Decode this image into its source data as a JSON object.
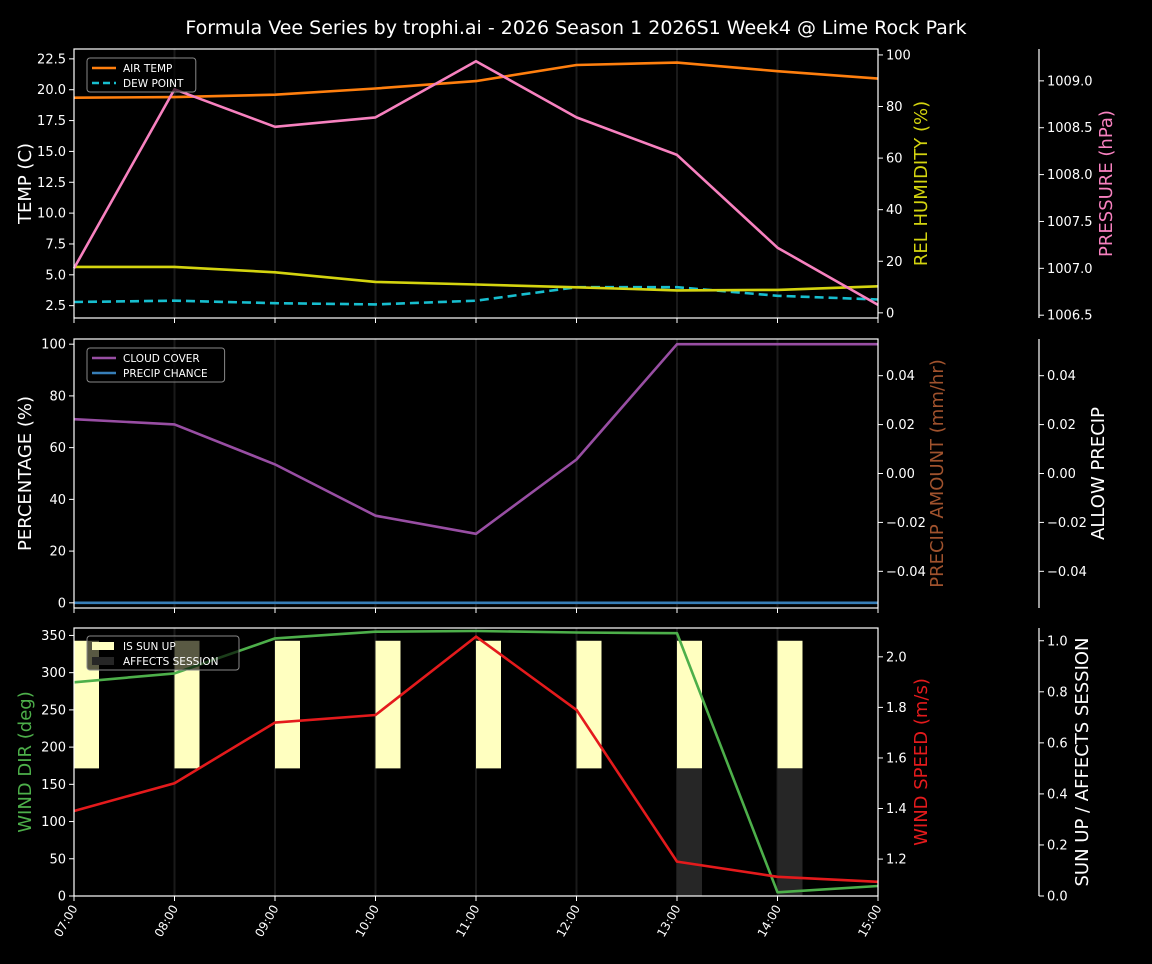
{
  "title": "Formula Vee Series by trophi.ai - 2026 Season 1 2026S1 Week4 @ Lime Rock Park",
  "colors": {
    "background": "#000000",
    "axis": "#ffffff",
    "grid": "#1a1a1a",
    "air_temp": "#ff7f0e",
    "dew_point": "#17becf",
    "humidity": "#d4d40f",
    "pressure": "#f781bf",
    "cloud_cover": "#984ea3",
    "precip_chance": "#377eb8",
    "precip_amount_label": "#a0522d",
    "wind_dir": "#4daf4a",
    "wind_speed": "#e41a1c",
    "sun_up": "#ffffc0",
    "affects_session": "#262626"
  },
  "chart_data": [
    {
      "type": "line",
      "panel": "temperature",
      "x": [
        "07:00",
        "08:00",
        "09:00",
        "10:00",
        "11:00",
        "12:00",
        "13:00",
        "14:00",
        "15:00"
      ],
      "series": [
        {
          "name": "AIR TEMP",
          "axis": "TEMP (C)",
          "style": "solid",
          "values": [
            19.35,
            19.4,
            19.6,
            20.1,
            20.7,
            22.0,
            22.2,
            21.5,
            20.9
          ]
        },
        {
          "name": "DEW POINT",
          "axis": "TEMP (C)",
          "style": "dashed",
          "values": [
            2.8,
            2.9,
            2.7,
            2.6,
            2.9,
            4.0,
            4.0,
            3.3,
            3.0
          ]
        },
        {
          "name": "REL HUMIDITY",
          "axis": "REL HUMIDITY (%)",
          "style": "solid",
          "values": [
            17.8,
            17.8,
            15.7,
            12.0,
            11.0,
            9.9,
            8.7,
            8.9,
            10.3
          ]
        },
        {
          "name": "PRESSURE",
          "axis": "PRESSURE (hPa)",
          "style": "solid",
          "values": [
            1007.0,
            1008.91,
            1008.51,
            1008.61,
            1009.21,
            1008.61,
            1008.21,
            1007.22,
            1006.61
          ]
        }
      ],
      "axes": [
        {
          "label": "TEMP (C)",
          "side": "left",
          "ylim": [
            1.5,
            23.3
          ],
          "ticks": [
            "2.5",
            "5.0",
            "7.5",
            "10.0",
            "12.5",
            "15.0",
            "17.5",
            "20.0",
            "22.5"
          ]
        },
        {
          "label": "REL HUMIDITY (%)",
          "side": "right",
          "ylim": [
            -2.0,
            102.3
          ],
          "ticks": [
            "0",
            "20",
            "40",
            "60",
            "80",
            "100"
          ]
        },
        {
          "label": "PRESSURE (hPa)",
          "side": "right-outer",
          "ylim": [
            1006.47,
            1009.34
          ],
          "ticks": [
            "1006.5",
            "1007.0",
            "1007.5",
            "1008.0",
            "1008.5",
            "1009.0"
          ]
        }
      ],
      "legend": [
        "AIR TEMP",
        "DEW POINT"
      ],
      "legend_position": "upper left"
    },
    {
      "type": "line",
      "panel": "percentage",
      "x": [
        "07:00",
        "08:00",
        "09:00",
        "10:00",
        "11:00",
        "12:00",
        "13:00",
        "14:00",
        "15:00"
      ],
      "series": [
        {
          "name": "CLOUD COVER",
          "axis": "PERCENTAGE (%)",
          "values": [
            71,
            69,
            53.5,
            33.7,
            26.7,
            55.4,
            100,
            100,
            100
          ]
        },
        {
          "name": "PRECIP CHANCE",
          "axis": "PERCENTAGE (%)",
          "values": [
            0,
            0,
            0,
            0,
            0,
            0,
            0,
            0,
            0
          ]
        }
      ],
      "axes": [
        {
          "label": "PERCENTAGE (%)",
          "side": "left",
          "ylim": [
            -2,
            102
          ],
          "ticks": [
            "0",
            "20",
            "40",
            "60",
            "80",
            "100"
          ]
        },
        {
          "label": "PRECIP AMOUNT (mm/hr)",
          "side": "right",
          "ylim": [
            -0.055,
            0.055
          ],
          "ticks": [
            "−0.04",
            "−0.02",
            "0.00",
            "0.02",
            "0.04"
          ]
        },
        {
          "label": "ALLOW PRECIP",
          "side": "right-outer",
          "ylim": [
            -0.055,
            0.055
          ],
          "ticks": [
            "−0.04",
            "−0.02",
            "0.00",
            "0.02",
            "0.04"
          ]
        }
      ],
      "legend": [
        "CLOUD COVER",
        "PRECIP CHANCE"
      ],
      "legend_position": "upper left"
    },
    {
      "type": "line",
      "panel": "wind",
      "x": [
        "07:00",
        "08:00",
        "09:00",
        "10:00",
        "11:00",
        "12:00",
        "13:00",
        "14:00",
        "15:00"
      ],
      "series": [
        {
          "name": "WIND DIR",
          "axis": "WIND DIR (deg)",
          "values": [
            287,
            299,
            346,
            355,
            356,
            354,
            353,
            5,
            13.5
          ]
        },
        {
          "name": "WIND SPEED",
          "axis": "WIND SPEED (m/s)",
          "values": [
            1.39,
            1.5,
            1.74,
            1.77,
            2.08,
            1.79,
            1.19,
            1.13,
            1.11
          ]
        },
        {
          "name": "IS SUN UP",
          "axis": "SUN UP / AFFECTS SESSION",
          "type": "bar",
          "values": [
            1,
            1,
            1,
            1,
            1,
            1,
            1,
            1,
            0
          ]
        },
        {
          "name": "AFFECTS SESSION",
          "axis": "SUN UP / AFFECTS SESSION",
          "type": "bar",
          "values": [
            0,
            0,
            0,
            0,
            0,
            0,
            1,
            1,
            0
          ]
        }
      ],
      "axes": [
        {
          "label": "WIND DIR (deg)",
          "side": "left",
          "ylim": [
            0,
            360
          ],
          "ticks": [
            "0",
            "50",
            "100",
            "150",
            "200",
            "250",
            "300",
            "350"
          ]
        },
        {
          "label": "WIND SPEED (m/s)",
          "side": "right",
          "ylim": [
            1.054,
            2.114
          ],
          "ticks": [
            "1.2",
            "1.4",
            "1.6",
            "1.8",
            "2.0"
          ]
        },
        {
          "label": "SUN UP / AFFECTS SESSION",
          "side": "right-outer",
          "ylim": [
            0,
            1.05
          ],
          "ticks": [
            "0.0",
            "0.2",
            "0.4",
            "0.6",
            "0.8",
            "1.0"
          ]
        }
      ],
      "legend": [
        "IS SUN UP",
        "AFFECTS SESSION"
      ],
      "legend_position": "upper left",
      "xlabel_rotation": 60
    }
  ]
}
